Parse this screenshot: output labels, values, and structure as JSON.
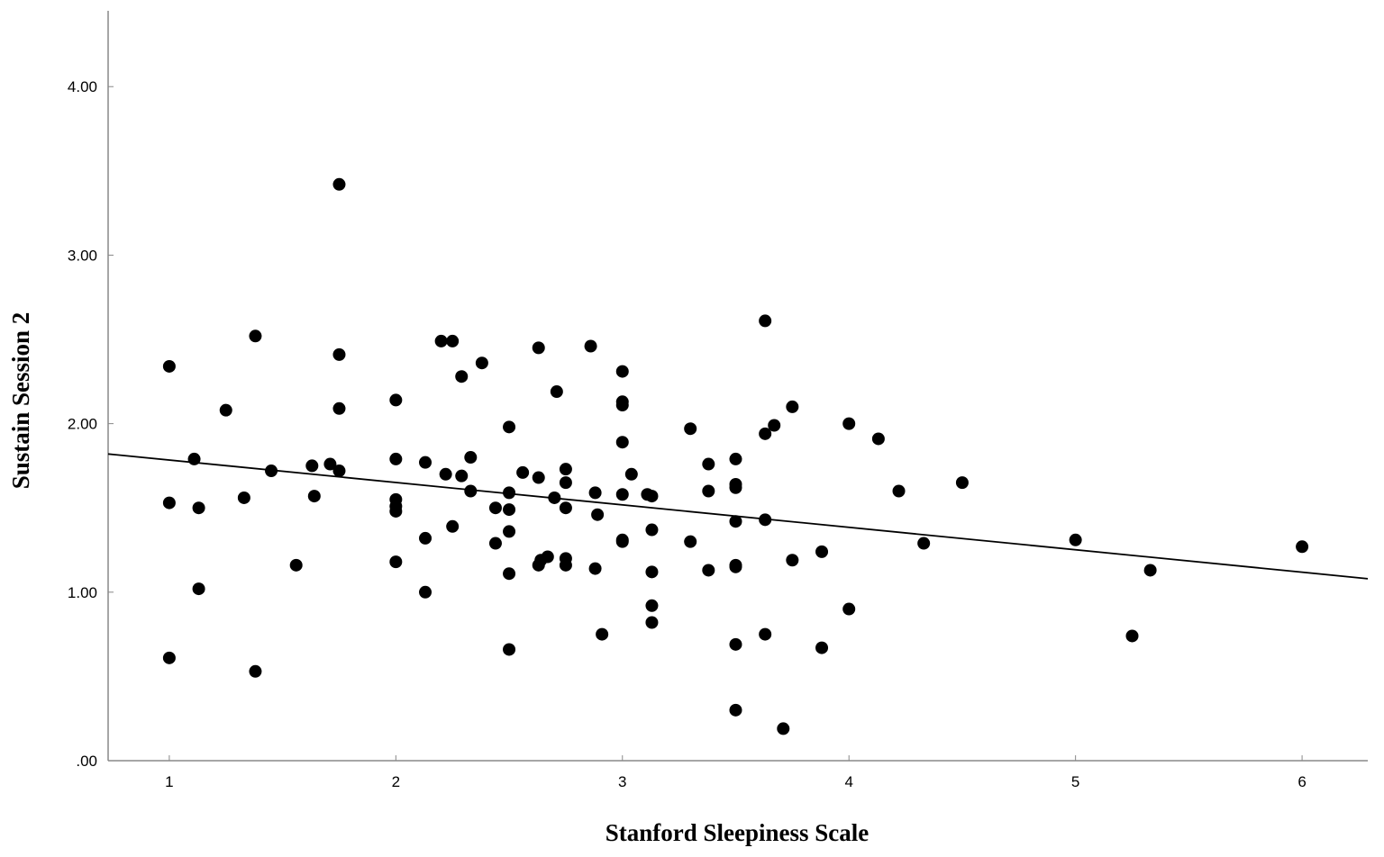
{
  "chart_data": {
    "type": "scatter",
    "title": "",
    "xlabel": "Stanford Sleepiness Scale",
    "ylabel": "Sustain Session 2",
    "xlim": [
      0.73,
      6.29
    ],
    "ylim": [
      0,
      4.45
    ],
    "x_ticks": [
      {
        "value": 1,
        "label": "1"
      },
      {
        "value": 2,
        "label": "2"
      },
      {
        "value": 3,
        "label": "3"
      },
      {
        "value": 4,
        "label": "4"
      },
      {
        "value": 5,
        "label": "5"
      },
      {
        "value": 6,
        "label": "6"
      }
    ],
    "y_ticks": [
      {
        "value": 0,
        "label": ".00"
      },
      {
        "value": 1,
        "label": "1.00"
      },
      {
        "value": 2,
        "label": "2.00"
      },
      {
        "value": 3,
        "label": "3.00"
      },
      {
        "value": 4,
        "label": "4.00"
      }
    ],
    "grid": false,
    "legend": "none",
    "colors": {
      "points": "#000000",
      "fit_line": "#000000",
      "axis": "#888888"
    },
    "fit_line": {
      "x": [
        0.73,
        6.29
      ],
      "y": [
        1.82,
        1.08
      ]
    },
    "points": [
      {
        "x": 1.0,
        "y": 2.34
      },
      {
        "x": 1.0,
        "y": 1.53
      },
      {
        "x": 1.0,
        "y": 0.61
      },
      {
        "x": 1.11,
        "y": 1.79
      },
      {
        "x": 1.13,
        "y": 1.5
      },
      {
        "x": 1.13,
        "y": 1.02
      },
      {
        "x": 1.25,
        "y": 2.08
      },
      {
        "x": 1.33,
        "y": 1.56
      },
      {
        "x": 1.38,
        "y": 2.52
      },
      {
        "x": 1.38,
        "y": 0.53
      },
      {
        "x": 1.45,
        "y": 1.72
      },
      {
        "x": 1.56,
        "y": 1.16
      },
      {
        "x": 1.63,
        "y": 1.75
      },
      {
        "x": 1.64,
        "y": 1.57
      },
      {
        "x": 1.71,
        "y": 1.76
      },
      {
        "x": 1.75,
        "y": 3.42
      },
      {
        "x": 1.75,
        "y": 2.41
      },
      {
        "x": 1.75,
        "y": 2.09
      },
      {
        "x": 1.75,
        "y": 1.72
      },
      {
        "x": 2.0,
        "y": 2.14
      },
      {
        "x": 2.0,
        "y": 1.79
      },
      {
        "x": 2.0,
        "y": 1.55
      },
      {
        "x": 2.0,
        "y": 1.51
      },
      {
        "x": 2.0,
        "y": 1.48
      },
      {
        "x": 2.0,
        "y": 1.18
      },
      {
        "x": 2.13,
        "y": 1.77
      },
      {
        "x": 2.13,
        "y": 1.32
      },
      {
        "x": 2.13,
        "y": 1.0
      },
      {
        "x": 2.2,
        "y": 2.49
      },
      {
        "x": 2.22,
        "y": 1.7
      },
      {
        "x": 2.25,
        "y": 2.49
      },
      {
        "x": 2.25,
        "y": 1.39
      },
      {
        "x": 2.29,
        "y": 2.28
      },
      {
        "x": 2.29,
        "y": 1.69
      },
      {
        "x": 2.33,
        "y": 1.8
      },
      {
        "x": 2.33,
        "y": 1.6
      },
      {
        "x": 2.38,
        "y": 2.36
      },
      {
        "x": 2.44,
        "y": 1.5
      },
      {
        "x": 2.44,
        "y": 1.29
      },
      {
        "x": 2.5,
        "y": 1.98
      },
      {
        "x": 2.5,
        "y": 1.59
      },
      {
        "x": 2.5,
        "y": 1.49
      },
      {
        "x": 2.5,
        "y": 1.36
      },
      {
        "x": 2.5,
        "y": 1.11
      },
      {
        "x": 2.5,
        "y": 0.66
      },
      {
        "x": 2.56,
        "y": 1.71
      },
      {
        "x": 2.63,
        "y": 2.45
      },
      {
        "x": 2.63,
        "y": 1.68
      },
      {
        "x": 2.63,
        "y": 1.16
      },
      {
        "x": 2.64,
        "y": 1.19
      },
      {
        "x": 2.67,
        "y": 1.21
      },
      {
        "x": 2.7,
        "y": 1.56
      },
      {
        "x": 2.71,
        "y": 2.19
      },
      {
        "x": 2.75,
        "y": 1.73
      },
      {
        "x": 2.75,
        "y": 1.65
      },
      {
        "x": 2.75,
        "y": 1.5
      },
      {
        "x": 2.75,
        "y": 1.2
      },
      {
        "x": 2.75,
        "y": 1.16
      },
      {
        "x": 2.86,
        "y": 2.46
      },
      {
        "x": 2.88,
        "y": 1.59
      },
      {
        "x": 2.88,
        "y": 1.14
      },
      {
        "x": 2.89,
        "y": 1.46
      },
      {
        "x": 2.91,
        "y": 0.75
      },
      {
        "x": 3.0,
        "y": 2.31
      },
      {
        "x": 3.0,
        "y": 2.13
      },
      {
        "x": 3.0,
        "y": 2.11
      },
      {
        "x": 3.0,
        "y": 1.89
      },
      {
        "x": 3.0,
        "y": 1.58
      },
      {
        "x": 3.0,
        "y": 1.31
      },
      {
        "x": 3.0,
        "y": 1.3
      },
      {
        "x": 3.04,
        "y": 1.7
      },
      {
        "x": 3.11,
        "y": 1.58
      },
      {
        "x": 3.13,
        "y": 1.57
      },
      {
        "x": 3.13,
        "y": 1.37
      },
      {
        "x": 3.13,
        "y": 1.12
      },
      {
        "x": 3.13,
        "y": 0.92
      },
      {
        "x": 3.13,
        "y": 0.82
      },
      {
        "x": 3.3,
        "y": 1.97
      },
      {
        "x": 3.3,
        "y": 1.3
      },
      {
        "x": 3.38,
        "y": 1.76
      },
      {
        "x": 3.38,
        "y": 1.6
      },
      {
        "x": 3.38,
        "y": 1.13
      },
      {
        "x": 3.5,
        "y": 1.79
      },
      {
        "x": 3.5,
        "y": 1.64
      },
      {
        "x": 3.5,
        "y": 1.62
      },
      {
        "x": 3.5,
        "y": 1.42
      },
      {
        "x": 3.5,
        "y": 1.16
      },
      {
        "x": 3.5,
        "y": 1.15
      },
      {
        "x": 3.5,
        "y": 0.69
      },
      {
        "x": 3.5,
        "y": 0.3
      },
      {
        "x": 3.63,
        "y": 2.61
      },
      {
        "x": 3.63,
        "y": 1.94
      },
      {
        "x": 3.63,
        "y": 1.43
      },
      {
        "x": 3.63,
        "y": 0.75
      },
      {
        "x": 3.67,
        "y": 1.99
      },
      {
        "x": 3.71,
        "y": 0.19
      },
      {
        "x": 3.75,
        "y": 2.1
      },
      {
        "x": 3.75,
        "y": 1.19
      },
      {
        "x": 3.88,
        "y": 1.24
      },
      {
        "x": 3.88,
        "y": 0.67
      },
      {
        "x": 4.0,
        "y": 2.0
      },
      {
        "x": 4.0,
        "y": 0.9
      },
      {
        "x": 4.13,
        "y": 1.91
      },
      {
        "x": 4.22,
        "y": 1.6
      },
      {
        "x": 4.33,
        "y": 1.29
      },
      {
        "x": 4.5,
        "y": 1.65
      },
      {
        "x": 5.0,
        "y": 1.31
      },
      {
        "x": 5.25,
        "y": 0.74
      },
      {
        "x": 5.33,
        "y": 1.13
      },
      {
        "x": 6.0,
        "y": 1.27
      }
    ]
  }
}
